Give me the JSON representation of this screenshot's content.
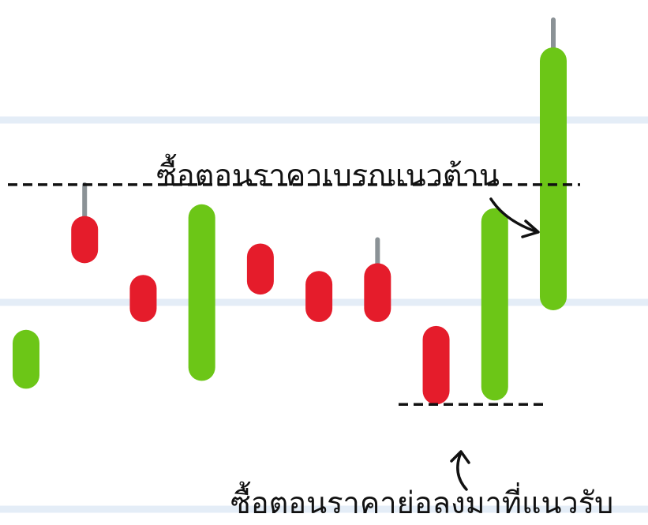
{
  "chart_data": {
    "type": "candlestick",
    "title": "",
    "xlabel": "",
    "ylabel": "",
    "ylim": [
      0,
      100
    ],
    "grid": true,
    "x": [
      1,
      2,
      3,
      4,
      5,
      6,
      7,
      8,
      9,
      10
    ],
    "candles": [
      {
        "open": 12,
        "close": 27,
        "high": 27,
        "low": 12,
        "direction": "up"
      },
      {
        "open": 56,
        "close": 44,
        "high": 64,
        "low": 44,
        "direction": "down"
      },
      {
        "open": 41,
        "close": 29,
        "high": 41,
        "low": 29,
        "direction": "down"
      },
      {
        "open": 14,
        "close": 59,
        "high": 59,
        "low": 14,
        "direction": "up"
      },
      {
        "open": 49,
        "close": 36,
        "high": 49,
        "low": 36,
        "direction": "down"
      },
      {
        "open": 42,
        "close": 29,
        "high": 42,
        "low": 29,
        "direction": "down"
      },
      {
        "open": 44,
        "close": 29,
        "high": 50,
        "low": 29,
        "direction": "down"
      },
      {
        "open": 28,
        "close": 8,
        "high": 28,
        "low": 8,
        "direction": "down"
      },
      {
        "open": 9,
        "close": 58,
        "high": 58,
        "low": 9,
        "direction": "up"
      },
      {
        "open": 32,
        "close": 99,
        "high": 106,
        "low": 32,
        "direction": "up"
      }
    ],
    "reference_lines": [
      {
        "value": 64,
        "style": "dashed",
        "name": "resistance"
      },
      {
        "value": 8,
        "style": "dashed",
        "name": "support"
      }
    ],
    "annotations": [
      {
        "text": "ซื้อตอนราคาเบรกแนวต้าน",
        "target": "resistance"
      },
      {
        "text": "ซื้อตอนราคาย่อลงมาที่แนวรับ",
        "target": "support"
      }
    ],
    "colors": {
      "up": "#6cc617",
      "down": "#e51c2b",
      "wick": "#8b9296",
      "grid": "#e4edf7",
      "reference": "#111111"
    }
  }
}
